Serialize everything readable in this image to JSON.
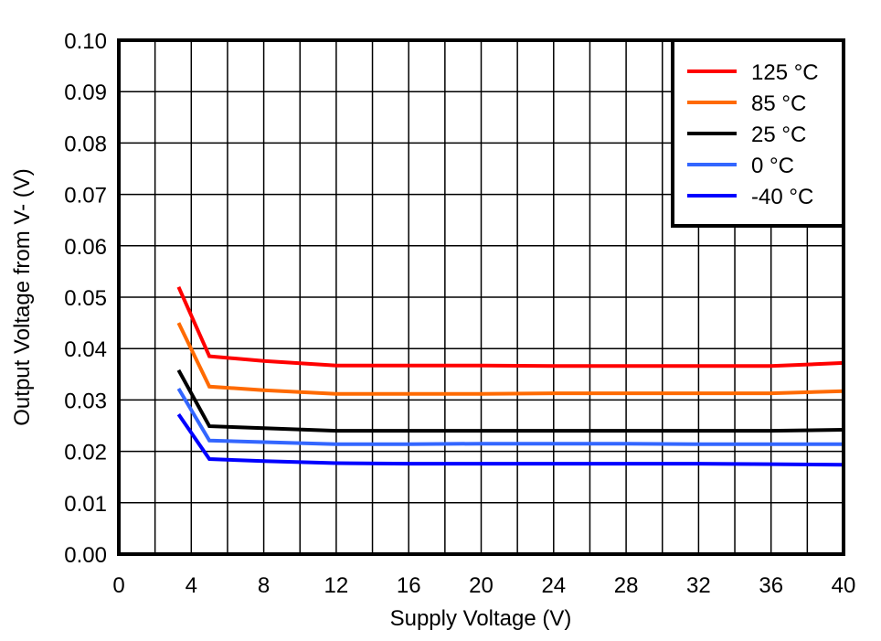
{
  "chart_data": {
    "type": "line",
    "title": "",
    "xlabel": "Supply Voltage (V)",
    "ylabel": "Output Voltage from V- (V)",
    "xlim": [
      0,
      40
    ],
    "ylim": [
      0.0,
      0.1
    ],
    "xticks": [
      "0",
      "4",
      "8",
      "12",
      "16",
      "20",
      "24",
      "28",
      "32",
      "36",
      "40"
    ],
    "yticks": [
      "0.00",
      "0.01",
      "0.02",
      "0.03",
      "0.04",
      "0.05",
      "0.06",
      "0.07",
      "0.08",
      "0.09",
      "0.10"
    ],
    "grid": true,
    "grid_x_step": 2,
    "grid_y_step": 0.01,
    "legend_position": "upper right",
    "x": [
      3.3,
      5,
      8,
      12,
      16,
      20,
      24,
      28,
      32,
      36,
      40
    ],
    "series": [
      {
        "name": "125 °C",
        "color": "#ff0000",
        "values": [
          0.052,
          0.0385,
          0.0376,
          0.0367,
          0.0367,
          0.0367,
          0.0366,
          0.0366,
          0.0366,
          0.0366,
          0.0372
        ]
      },
      {
        "name": "85 °C",
        "color": "#ff6a00",
        "values": [
          0.045,
          0.0326,
          0.0319,
          0.0312,
          0.0312,
          0.0312,
          0.0313,
          0.0313,
          0.0313,
          0.0313,
          0.0317
        ]
      },
      {
        "name": "25 °C",
        "color": "#000000",
        "values": [
          0.0358,
          0.0249,
          0.0245,
          0.024,
          0.024,
          0.024,
          0.024,
          0.024,
          0.024,
          0.024,
          0.0242
        ]
      },
      {
        "name": "0 °C",
        "color": "#3366ff",
        "values": [
          0.0322,
          0.0221,
          0.0218,
          0.0214,
          0.0214,
          0.0215,
          0.0215,
          0.0215,
          0.0214,
          0.0214,
          0.0214
        ]
      },
      {
        "name": "-40 °C",
        "color": "#0000ff",
        "values": [
          0.0272,
          0.0185,
          0.0181,
          0.0177,
          0.0176,
          0.0176,
          0.0176,
          0.0176,
          0.0176,
          0.0175,
          0.0174
        ]
      }
    ]
  }
}
